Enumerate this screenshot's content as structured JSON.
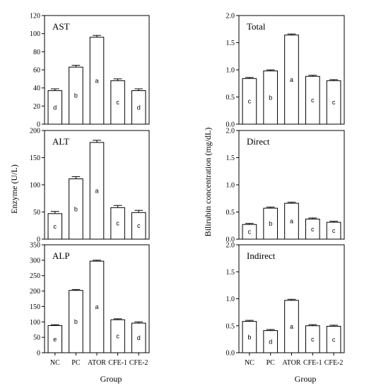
{
  "figure": {
    "left_ylabel": "Enzyme  (U/L)",
    "right_ylabel": "Bilirubin concentration (mg/dL)",
    "left_xlabel": "Group",
    "right_xlabel": "Group"
  },
  "chart_data": [
    {
      "type": "bar",
      "title": "AST",
      "categories": [
        "NC",
        "PC",
        "ATOR",
        "CFE-1",
        "CFE-2"
      ],
      "values": [
        37,
        63,
        96,
        48,
        37
      ],
      "errors": [
        2,
        2,
        2,
        2,
        2
      ],
      "labels": [
        "d",
        "b",
        "a",
        "c",
        "d"
      ],
      "ylim": [
        0,
        120
      ],
      "yticks": [
        "0",
        "20",
        "40",
        "60",
        "80",
        "100",
        "120"
      ],
      "show_x_ticks": false
    },
    {
      "type": "bar",
      "title": "ALT",
      "categories": [
        "NC",
        "PC",
        "ATOR",
        "CFE-1",
        "CFE-2"
      ],
      "values": [
        47,
        111,
        178,
        58,
        49
      ],
      "errors": [
        4,
        4,
        4,
        4,
        4
      ],
      "labels": [
        "c",
        "b",
        "a",
        "c",
        "c"
      ],
      "ylim": [
        0,
        200
      ],
      "yticks": [
        "0",
        "50",
        "100",
        "150",
        "200"
      ],
      "show_x_ticks": false
    },
    {
      "type": "bar",
      "title": "ALP",
      "categories": [
        "NC",
        "PC",
        "ATOR",
        "CFE-1",
        "CFE-2"
      ],
      "values": [
        88,
        202,
        297,
        107,
        96
      ],
      "errors": [
        3,
        3,
        3,
        3,
        4
      ],
      "labels": [
        "e",
        "b",
        "a",
        "c",
        "d"
      ],
      "ylim": [
        0,
        350
      ],
      "yticks": [
        "0",
        "50",
        "100",
        "150",
        "200",
        "250",
        "300",
        "350"
      ],
      "show_x_ticks": true
    },
    {
      "type": "bar",
      "title": "Total",
      "categories": [
        "NC",
        "PC",
        "ATOR",
        "CFE-1",
        "CFE-2"
      ],
      "values": [
        0.84,
        0.98,
        1.64,
        0.88,
        0.8
      ],
      "errors": [
        0.02,
        0.02,
        0.02,
        0.02,
        0.02
      ],
      "labels": [
        "c",
        "b",
        "a",
        "c",
        "c"
      ],
      "ylim": [
        0,
        2
      ],
      "yticks": [
        "0.0",
        "0.5",
        "1.0",
        "1.5",
        "2.0"
      ],
      "show_x_ticks": false
    },
    {
      "type": "bar",
      "title": "Direct",
      "categories": [
        "NC",
        "PC",
        "ATOR",
        "CFE-1",
        "CFE-2"
      ],
      "values": [
        0.27,
        0.57,
        0.66,
        0.37,
        0.31
      ],
      "errors": [
        0.02,
        0.02,
        0.02,
        0.02,
        0.02
      ],
      "labels": [
        "c",
        "b",
        "a",
        "c",
        "c"
      ],
      "ylim": [
        0,
        2
      ],
      "yticks": [
        "0.0",
        "0.5",
        "1.0",
        "1.5",
        "2.0"
      ],
      "show_x_ticks": false
    },
    {
      "type": "bar",
      "title": "Indirect",
      "categories": [
        "NC",
        "PC",
        "ATOR",
        "CFE-1",
        "CFE-2"
      ],
      "values": [
        0.58,
        0.41,
        0.97,
        0.5,
        0.49
      ],
      "errors": [
        0.02,
        0.02,
        0.02,
        0.02,
        0.02
      ],
      "labels": [
        "b",
        "d",
        "a",
        "c",
        "c"
      ],
      "ylim": [
        0,
        2
      ],
      "yticks": [
        "0.0",
        "0.5",
        "1.0",
        "1.5",
        "2.0"
      ],
      "show_x_ticks": true
    }
  ]
}
